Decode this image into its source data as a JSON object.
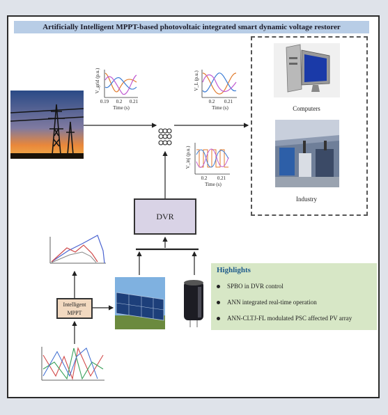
{
  "title": "Artificially Intelligent MPPT-based photovoltaic integrated smart dynamic voltage restorer",
  "blocks": {
    "dvr": "DVR",
    "mppt_line1": "Intelligent",
    "mppt_line2": "MPPT"
  },
  "loads": {
    "computers": "Computers",
    "industry": "Industry"
  },
  "highlights": {
    "heading": "Highlights",
    "items": [
      "SPBO in DVR control",
      "ANN integrated real-time operation",
      "ANN-CLTJ-FL modulated PSC affected PV array"
    ]
  },
  "plots": {
    "grid_plot": {
      "ylabel": "V_grid (p.u.)",
      "xticks": [
        "0.19",
        "0.2",
        "0.21"
      ],
      "xlabel": "Time (s)"
    },
    "load_plot": {
      "ylabel": "V_L (p.u.)",
      "xticks": [
        "0.2",
        "0.21"
      ],
      "xlabel": "Time (s)"
    },
    "inj_plot": {
      "ylabel": "V_inj (p.u.)",
      "xticks": [
        "0.2",
        "0.21"
      ],
      "xlabel": "Time (s)"
    }
  },
  "colors": {
    "title_bg": "#b8cde6",
    "dvr_fill": "#d9d3e6",
    "mppt_fill": "#f2d9c0",
    "highlights_bg": "#d7e7c6",
    "highlight_heading": "#1e5a8a"
  }
}
